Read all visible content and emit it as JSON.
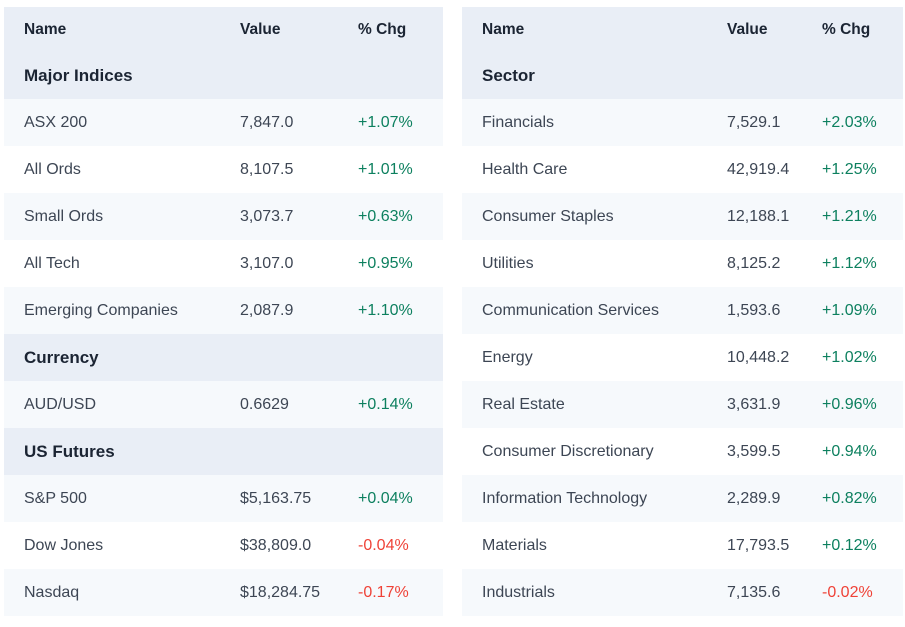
{
  "colors": {
    "positive": "#0d805f",
    "negative": "#ef4237",
    "header_bg": "#e9eef6",
    "row_alt_bg": "#f6f9fc",
    "row_bg": "#ffffff",
    "heading_text": "#1b2433",
    "body_text": "#3d4654"
  },
  "tables": [
    {
      "name": "market-overview-table",
      "columns": [
        "Name",
        "Value",
        "% Chg"
      ],
      "sections": [
        {
          "title": "Major Indices",
          "rows": [
            {
              "name": "ASX 200",
              "value": "7,847.0",
              "chg": "+1.07%"
            },
            {
              "name": "All Ords",
              "value": "8,107.5",
              "chg": "+1.01%"
            },
            {
              "name": "Small Ords",
              "value": "3,073.7",
              "chg": "+0.63%"
            },
            {
              "name": "All Tech",
              "value": "3,107.0",
              "chg": "+0.95%"
            },
            {
              "name": "Emerging Companies",
              "value": "2,087.9",
              "chg": "+1.10%"
            }
          ]
        },
        {
          "title": "Currency",
          "rows": [
            {
              "name": "AUD/USD",
              "value": "0.6629",
              "chg": "+0.14%"
            }
          ]
        },
        {
          "title": "US Futures",
          "rows": [
            {
              "name": "S&P 500",
              "value": "$5,163.75",
              "chg": "+0.04%"
            },
            {
              "name": "Dow Jones",
              "value": "$38,809.0",
              "chg": "-0.04%"
            },
            {
              "name": "Nasdaq",
              "value": "$18,284.75",
              "chg": "-0.17%"
            }
          ]
        }
      ]
    },
    {
      "name": "sectors-table",
      "columns": [
        "Name",
        "Value",
        "% Chg"
      ],
      "sections": [
        {
          "title": "Sector",
          "rows": [
            {
              "name": "Financials",
              "value": "7,529.1",
              "chg": "+2.03%"
            },
            {
              "name": "Health Care",
              "value": "42,919.4",
              "chg": "+1.25%"
            },
            {
              "name": "Consumer Staples",
              "value": "12,188.1",
              "chg": "+1.21%"
            },
            {
              "name": "Utilities",
              "value": "8,125.2",
              "chg": "+1.12%"
            },
            {
              "name": "Communication Services",
              "value": "1,593.6",
              "chg": "+1.09%"
            },
            {
              "name": "Energy",
              "value": "10,448.2",
              "chg": "+1.02%"
            },
            {
              "name": "Real Estate",
              "value": "3,631.9",
              "chg": "+0.96%"
            },
            {
              "name": "Consumer Discretionary",
              "value": "3,599.5",
              "chg": "+0.94%"
            },
            {
              "name": "Information Technology",
              "value": "2,289.9",
              "chg": "+0.82%"
            },
            {
              "name": "Materials",
              "value": "17,793.5",
              "chg": "+0.12%"
            },
            {
              "name": "Industrials",
              "value": "7,135.6",
              "chg": "-0.02%"
            }
          ]
        }
      ]
    }
  ]
}
